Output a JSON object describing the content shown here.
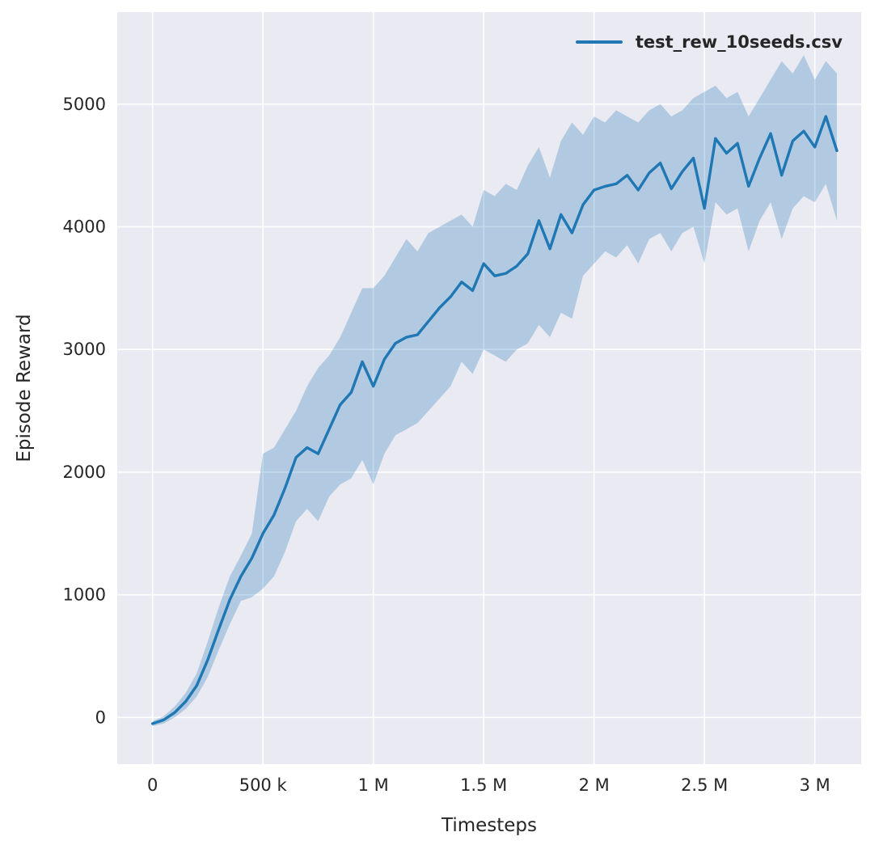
{
  "figure": {
    "background_color": "#ffffff",
    "plot_background_color": "#eaeaf2",
    "grid_color": "#ffffff"
  },
  "legend": {
    "label": "test_rew_10seeds.csv",
    "line_color": "#1f77b4"
  },
  "chart_data": {
    "type": "line",
    "title": "",
    "xlabel": "Timesteps",
    "ylabel": "Episode Reward",
    "legend_position": "upper right",
    "grid": true,
    "xlim": [
      -0.16,
      3.21
    ],
    "ylim": [
      -380,
      5750
    ],
    "x_unit": "millions of timesteps",
    "xticks": [
      0,
      0.5,
      1,
      1.5,
      2,
      2.5,
      3
    ],
    "xtick_labels": [
      "0",
      "500 k",
      "1 M",
      "1.5 M",
      "2 M",
      "2.5 M",
      "3 M"
    ],
    "yticks": [
      0,
      1000,
      2000,
      3000,
      4000,
      5000
    ],
    "ytick_labels": [
      "0",
      "1000",
      "2000",
      "3000",
      "4000",
      "5000"
    ],
    "series_name": "test_rew_10seeds.csv",
    "line_color": "#1f77b4",
    "band_color": "#1f77b4",
    "band_opacity": 0.27,
    "x": [
      0,
      0.05,
      0.1,
      0.15,
      0.2,
      0.25,
      0.3,
      0.35,
      0.4,
      0.45,
      0.5,
      0.55,
      0.6,
      0.65,
      0.7,
      0.75,
      0.8,
      0.85,
      0.9,
      0.95,
      1.0,
      1.05,
      1.1,
      1.15,
      1.2,
      1.25,
      1.3,
      1.35,
      1.4,
      1.45,
      1.5,
      1.55,
      1.6,
      1.65,
      1.7,
      1.75,
      1.8,
      1.85,
      1.9,
      1.95,
      2.0,
      2.05,
      2.1,
      2.15,
      2.2,
      2.25,
      2.3,
      2.35,
      2.4,
      2.45,
      2.5,
      2.55,
      2.6,
      2.65,
      2.7,
      2.75,
      2.8,
      2.85,
      2.9,
      2.95,
      3.0,
      3.05,
      3.1
    ],
    "mean": [
      -50,
      -20,
      40,
      130,
      260,
      470,
      720,
      960,
      1150,
      1300,
      1500,
      1650,
      1870,
      2120,
      2200,
      2150,
      2350,
      2550,
      2650,
      2900,
      2700,
      2920,
      3050,
      3100,
      3120,
      3230,
      3340,
      3430,
      3550,
      3480,
      3700,
      3600,
      3620,
      3680,
      3780,
      4050,
      3820,
      4100,
      3950,
      4180,
      4300,
      4330,
      4350,
      4420,
      4300,
      4440,
      4520,
      4310,
      4450,
      4560,
      4150,
      4720,
      4600,
      4680,
      4330,
      4560,
      4760,
      4420,
      4700,
      4780,
      4650,
      4900,
      4620
    ],
    "lower": [
      -70,
      -50,
      0,
      70,
      170,
      330,
      550,
      760,
      950,
      980,
      1050,
      1150,
      1350,
      1600,
      1700,
      1600,
      1800,
      1900,
      1950,
      2100,
      1900,
      2150,
      2300,
      2350,
      2400,
      2500,
      2600,
      2700,
      2900,
      2800,
      3000,
      2950,
      2900,
      3000,
      3050,
      3200,
      3100,
      3300,
      3250,
      3600,
      3700,
      3800,
      3750,
      3850,
      3700,
      3900,
      3950,
      3800,
      3950,
      4000,
      3700,
      4200,
      4100,
      4150,
      3800,
      4050,
      4200,
      3900,
      4150,
      4250,
      4200,
      4350,
      4050
    ],
    "upper": [
      -30,
      10,
      90,
      200,
      360,
      620,
      900,
      1150,
      1320,
      1500,
      2150,
      2200,
      2350,
      2500,
      2700,
      2850,
      2950,
      3100,
      3300,
      3500,
      3500,
      3600,
      3750,
      3900,
      3800,
      3950,
      4000,
      4050,
      4100,
      4000,
      4300,
      4250,
      4350,
      4300,
      4500,
      4650,
      4400,
      4700,
      4850,
      4750,
      4900,
      4850,
      4950,
      4900,
      4850,
      4950,
      5000,
      4900,
      4950,
      5050,
      5100,
      5150,
      5050,
      5100,
      4900,
      5050,
      5200,
      5350,
      5250,
      5400,
      5200,
      5350,
      5250
    ]
  }
}
